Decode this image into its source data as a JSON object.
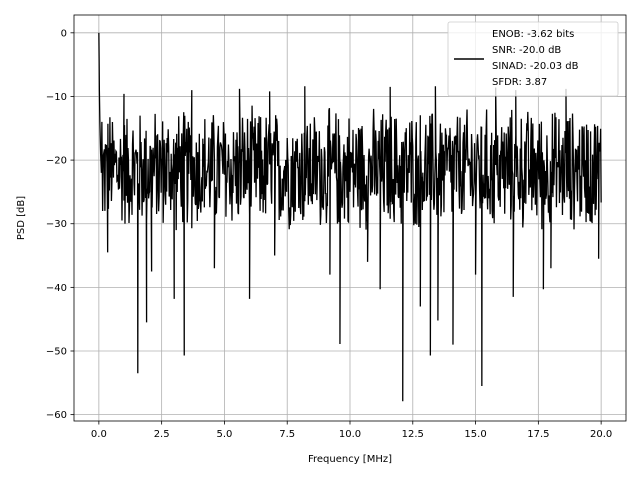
{
  "chart_data": {
    "type": "line",
    "xlabel": "Frequency [MHz]",
    "ylabel": "PSD [dB]",
    "xlim": [
      -0.99,
      20.99
    ],
    "ylim": [
      -61.0,
      2.8
    ],
    "xticks": [
      0.0,
      2.5,
      5.0,
      7.5,
      10.0,
      12.5,
      15.0,
      17.5,
      20.0
    ],
    "xtick_labels": [
      "0.0",
      "2.5",
      "5.0",
      "7.5",
      "10.0",
      "12.5",
      "15.0",
      "17.5",
      "20.0"
    ],
    "yticks": [
      0,
      -10,
      -20,
      -30,
      -40,
      -50,
      -60
    ],
    "ytick_labels": [
      "0",
      "−10",
      "−20",
      "−30",
      "−40",
      "−50",
      "−60"
    ],
    "grid": true,
    "legend_position": "top-right",
    "series": [
      {
        "legend_lines": [
          "ENOB: -3.62 bits",
          "SNR: -20.0 dB",
          "SINAD: -20.03 dB",
          "SFDR: 3.87"
        ],
        "color": "#000000",
        "noise_band": {
          "x_start": 0.18,
          "x_end": 20.0,
          "upper_db": -12.0,
          "lower_db": -31.0,
          "step_mhz": 0.02
        },
        "points": [
          [
            0.0,
            0.0
          ],
          [
            0.01,
            -4.0
          ],
          [
            0.02,
            -9.0
          ],
          [
            0.04,
            -14.0
          ],
          [
            0.07,
            -19.0
          ],
          [
            0.1,
            -22.0
          ],
          [
            0.12,
            -14.0
          ],
          [
            0.15,
            -28.0
          ],
          [
            1.55,
            -53.5
          ],
          [
            1.9,
            -45.5
          ],
          [
            3.4,
            -50.7
          ],
          [
            9.6,
            -48.9
          ],
          [
            12.1,
            -57.9
          ],
          [
            13.2,
            -50.7
          ],
          [
            15.25,
            -55.5
          ],
          [
            14.1,
            -49.0
          ],
          [
            6.0,
            -41.8
          ],
          [
            11.2,
            -40.3
          ],
          [
            17.7,
            -40.3
          ],
          [
            16.5,
            -41.5
          ],
          [
            2.1,
            -37.5
          ],
          [
            3.0,
            -41.8
          ],
          [
            9.2,
            -38.0
          ],
          [
            13.5,
            -45.2
          ],
          [
            15.0,
            -38.0
          ],
          [
            18.0,
            -37.0
          ],
          [
            0.35,
            -34.5
          ],
          [
            19.9,
            -35.5
          ],
          [
            7.0,
            -35.0
          ],
          [
            4.6,
            -37.0
          ],
          [
            10.7,
            -36.0
          ],
          [
            12.8,
            -43.0
          ],
          [
            1.0,
            -9.6
          ],
          [
            3.7,
            -9.0
          ],
          [
            5.6,
            -8.8
          ],
          [
            8.2,
            -8.4
          ],
          [
            11.6,
            -8.5
          ],
          [
            13.4,
            -8.4
          ],
          [
            15.8,
            -8.6
          ],
          [
            18.6,
            -8.8
          ],
          [
            6.8,
            -9.2
          ],
          [
            16.6,
            -9.0
          ]
        ]
      }
    ]
  }
}
